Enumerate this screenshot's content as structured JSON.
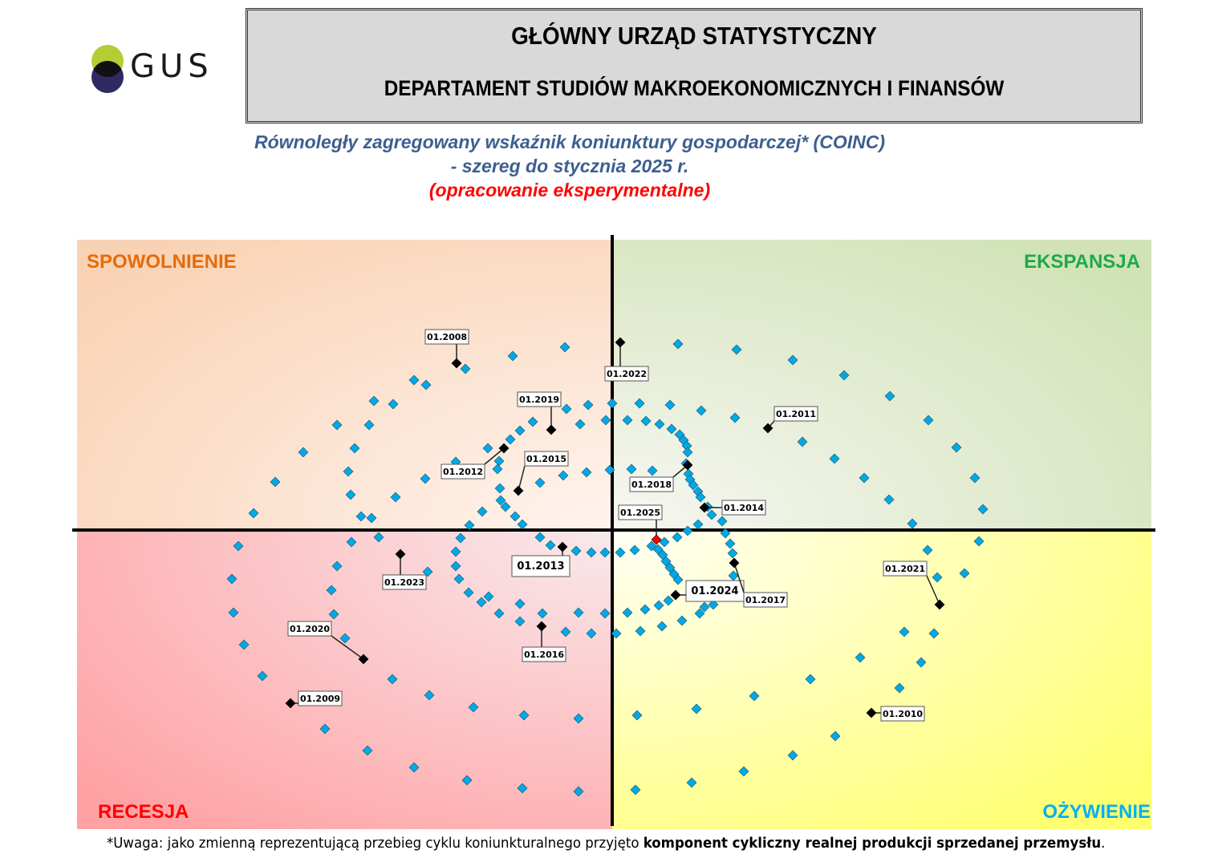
{
  "logo": {
    "text": "GUS",
    "colors": {
      "top": "#b5cc35",
      "bottom": "#2e2a63",
      "overlap": "#111111"
    }
  },
  "header": {
    "title": "GŁÓWNY URZĄD STATYSTYCZNY",
    "department": "DEPARTAMENT STUDIÓW MAKROEKONOMICZNYCH I FINANSÓW"
  },
  "subtitle": {
    "line1": "Równoległy zagregowany wskaźnik koniunktury gospodarczej* (COINC)",
    "line2": "- szereg do stycznia 2025 r.",
    "line3": "(opracowanie eksperymentalne)"
  },
  "footnote": {
    "normal": "*Uwaga: jako zmienną reprezentującą przebieg cyklu koniunkturalnego przyjęto ",
    "bold": "komponent cykliczny realnej produkcji sprzedanej przemysłu",
    "end": "."
  },
  "chart_data": {
    "type": "scatter",
    "grid": false,
    "axes_ticks_labeled": false,
    "quadrants": {
      "top_left": {
        "label": "SPOWOLNIENIE",
        "color": "#e46c0a"
      },
      "top_right": {
        "label": "EKSPANSJA",
        "color": "#1fa84a"
      },
      "bottom_left": {
        "label": "RECESJA",
        "color": "#ff0000"
      },
      "bottom_right": {
        "label": "OŻYWIENIE",
        "color": "#00b0f0"
      }
    },
    "point_color": "#00a9e6",
    "highlight_color": "#000000",
    "latest_color": "#ff0000",
    "points": [
      [
        -1.24,
        2.17
      ],
      [
        -0.59,
        2.28
      ],
      [
        -1.83,
        2.01
      ],
      [
        -2.47,
        1.87
      ],
      [
        -2.32,
        1.81
      ],
      [
        -2.97,
        1.61
      ],
      [
        -2.73,
        1.57
      ],
      [
        -3.43,
        1.31
      ],
      [
        -3.03,
        1.31
      ],
      [
        -3.21,
        1.02
      ],
      [
        -3.85,
        0.97
      ],
      [
        -4.2,
        0.6
      ],
      [
        -3.29,
        0.73
      ],
      [
        -3.26,
        0.44
      ],
      [
        -2.33,
        0.64
      ],
      [
        -2.7,
        0.41
      ],
      [
        -4.47,
        0.21
      ],
      [
        -3.13,
        0.17
      ],
      [
        -3.0,
        0.15
      ],
      [
        -1.95,
        0.85
      ],
      [
        -1.55,
        1.02
      ],
      [
        -1.27,
        1.13
      ],
      [
        -1.15,
        1.24
      ],
      [
        -0.99,
        1.35
      ],
      [
        -0.57,
        1.51
      ],
      [
        -0.3,
        1.56
      ],
      [
        -0.4,
        1.32
      ],
      [
        -0.08,
        1.37
      ],
      [
        0.0,
        1.58
      ],
      [
        -0.9,
        0.59
      ],
      [
        -0.61,
        0.68
      ],
      [
        -0.32,
        0.72
      ],
      [
        -0.03,
        0.75
      ],
      [
        -1.41,
        0.86
      ],
      [
        -1.43,
        0.76
      ],
      [
        -1.4,
        0.52
      ],
      [
        -1.39,
        0.37
      ],
      [
        -1.33,
        0.29
      ],
      [
        -1.21,
        0.17
      ],
      [
        -1.12,
        0.07
      ],
      [
        -1.78,
        0.06
      ],
      [
        -1.62,
        0.23
      ],
      [
        0.82,
        2.32
      ],
      [
        1.55,
        2.25
      ],
      [
        2.25,
        2.12
      ],
      [
        2.89,
        1.93
      ],
      [
        3.46,
        1.67
      ],
      [
        3.94,
        1.37
      ],
      [
        4.29,
        1.03
      ],
      [
        4.52,
        0.65
      ],
      [
        4.62,
        0.26
      ],
      [
        0.34,
        1.58
      ],
      [
        0.72,
        1.56
      ],
      [
        1.11,
        1.49
      ],
      [
        1.53,
        1.4
      ],
      [
        0.19,
        1.37
      ],
      [
        0.42,
        1.36
      ],
      [
        0.59,
        1.32
      ],
      [
        0.74,
        1.26
      ],
      [
        0.84,
        1.19
      ],
      [
        0.89,
        1.12
      ],
      [
        0.93,
        1.05
      ],
      [
        0.94,
        0.97
      ],
      [
        0.92,
        0.83
      ],
      [
        0.95,
        0.7
      ],
      [
        0.97,
        0.63
      ],
      [
        1.01,
        0.56
      ],
      [
        1.07,
        0.48
      ],
      [
        1.1,
        0.41
      ],
      [
        1.19,
        0.29
      ],
      [
        1.24,
        0.19
      ],
      [
        1.37,
        0.11
      ],
      [
        1.07,
        0.07
      ],
      [
        0.24,
        0.76
      ],
      [
        0.5,
        0.74
      ],
      [
        0.67,
        0.58
      ],
      [
        2.37,
        1.1
      ],
      [
        2.77,
        0.89
      ],
      [
        3.14,
        0.65
      ],
      [
        3.45,
        0.38
      ],
      [
        3.74,
        0.08
      ],
      [
        4.57,
        -0.14
      ],
      [
        3.93,
        -0.25
      ],
      [
        4.39,
        -0.54
      ],
      [
        4.05,
        -0.59
      ],
      [
        4.01,
        -1.29
      ],
      [
        3.64,
        -1.27
      ],
      [
        3.85,
        -1.65
      ],
      [
        3.58,
        -1.97
      ],
      [
        3.09,
        -1.59
      ],
      [
        2.47,
        -1.86
      ],
      [
        2.78,
        -2.57
      ],
      [
        2.25,
        -2.81
      ],
      [
        1.64,
        -3.01
      ],
      [
        0.99,
        -3.15
      ],
      [
        0.29,
        -3.24
      ],
      [
        1.77,
        -2.07
      ],
      [
        1.05,
        -2.23
      ],
      [
        0.31,
        -2.31
      ],
      [
        0.05,
        -1.29
      ],
      [
        0.35,
        -1.26
      ],
      [
        0.62,
        -1.2
      ],
      [
        0.87,
        -1.13
      ],
      [
        1.09,
        -1.04
      ],
      [
        1.26,
        -0.93
      ],
      [
        0.19,
        -1.03
      ],
      [
        0.41,
        -0.99
      ],
      [
        0.58,
        -0.94
      ],
      [
        0.7,
        -0.88
      ],
      [
        0.82,
        -0.62
      ],
      [
        0.77,
        -0.55
      ],
      [
        0.72,
        -0.47
      ],
      [
        0.67,
        -0.39
      ],
      [
        0.63,
        -0.31
      ],
      [
        0.57,
        -0.24
      ],
      [
        0.49,
        -0.2
      ],
      [
        0.28,
        -0.25
      ],
      [
        0.1,
        -0.28
      ],
      [
        -0.09,
        -0.28
      ],
      [
        -0.26,
        -0.28
      ],
      [
        -0.45,
        -0.26
      ],
      [
        0.65,
        -0.15
      ],
      [
        0.81,
        -0.09
      ],
      [
        0.94,
        -0.01
      ],
      [
        1.41,
        -0.04
      ],
      [
        1.47,
        -0.17
      ],
      [
        1.5,
        -0.29
      ],
      [
        1.51,
        -0.57
      ],
      [
        1.15,
        -0.96
      ],
      [
        -4.66,
        -0.2
      ],
      [
        -4.74,
        -0.61
      ],
      [
        -4.72,
        -1.03
      ],
      [
        -4.59,
        -1.43
      ],
      [
        -4.36,
        -1.82
      ],
      [
        -3.58,
        -2.48
      ],
      [
        -3.05,
        -2.75
      ],
      [
        -2.47,
        -2.96
      ],
      [
        -1.81,
        -3.12
      ],
      [
        -1.12,
        -3.22
      ],
      [
        -0.42,
        -3.26
      ],
      [
        -2.91,
        -0.09
      ],
      [
        -3.25,
        -0.15
      ],
      [
        -3.43,
        -0.45
      ],
      [
        -3.5,
        -0.75
      ],
      [
        -3.47,
        -1.05
      ],
      [
        -3.33,
        -1.35
      ],
      [
        -2.74,
        -1.86
      ],
      [
        -2.28,
        -2.06
      ],
      [
        -1.73,
        -2.21
      ],
      [
        -1.1,
        -2.31
      ],
      [
        -0.42,
        -2.35
      ],
      [
        -2.3,
        -0.52
      ],
      [
        -1.95,
        -0.27
      ],
      [
        -1.89,
        -0.1
      ],
      [
        -1.95,
        -0.45
      ],
      [
        -1.91,
        -0.61
      ],
      [
        -1.79,
        -0.78
      ],
      [
        -1.63,
        -0.9
      ],
      [
        -1.54,
        -0.83
      ],
      [
        -1.41,
        -1.04
      ],
      [
        -1.15,
        -0.92
      ],
      [
        -1.15,
        -1.14
      ],
      [
        -0.87,
        -1.04
      ],
      [
        -0.42,
        -1.03
      ],
      [
        -0.58,
        -1.27
      ],
      [
        -0.26,
        -1.29
      ],
      [
        -0.09,
        -1.04
      ],
      [
        -0.9,
        -0.09
      ],
      [
        -0.77,
        -0.19
      ]
    ],
    "labeled_points": [
      {
        "label": "01.2008",
        "x": -1.94,
        "y": 2.08
      },
      {
        "label": "01.2022",
        "x": 0.1,
        "y": 2.34
      },
      {
        "label": "01.2019",
        "x": -0.76,
        "y": 1.25
      },
      {
        "label": "01.2012",
        "x": -1.35,
        "y": 1.02
      },
      {
        "label": "01.2015",
        "x": -1.17,
        "y": 0.49
      },
      {
        "label": "01.2011",
        "x": 1.94,
        "y": 1.27
      },
      {
        "label": "01.2018",
        "x": 0.94,
        "y": 0.81
      },
      {
        "label": "01.2014",
        "x": 1.15,
        "y": 0.28
      },
      {
        "label": "01.2025",
        "x": 0.55,
        "y": -0.12,
        "latest": true
      },
      {
        "label": "01.2013",
        "x": -0.62,
        "y": -0.21
      },
      {
        "label": "01.2023",
        "x": -2.64,
        "y": -0.3
      },
      {
        "label": "01.2024",
        "x": 0.79,
        "y": -0.81
      },
      {
        "label": "01.2017",
        "x": 1.52,
        "y": -0.41
      },
      {
        "label": "01.2021",
        "x": 4.08,
        "y": -0.93
      },
      {
        "label": "01.2020",
        "x": -3.1,
        "y": -1.61
      },
      {
        "label": "01.2016",
        "x": -0.88,
        "y": -1.2
      },
      {
        "label": "01.2009",
        "x": -4.01,
        "y": -2.16
      },
      {
        "label": "01.2010",
        "x": 3.23,
        "y": -2.28
      }
    ]
  }
}
